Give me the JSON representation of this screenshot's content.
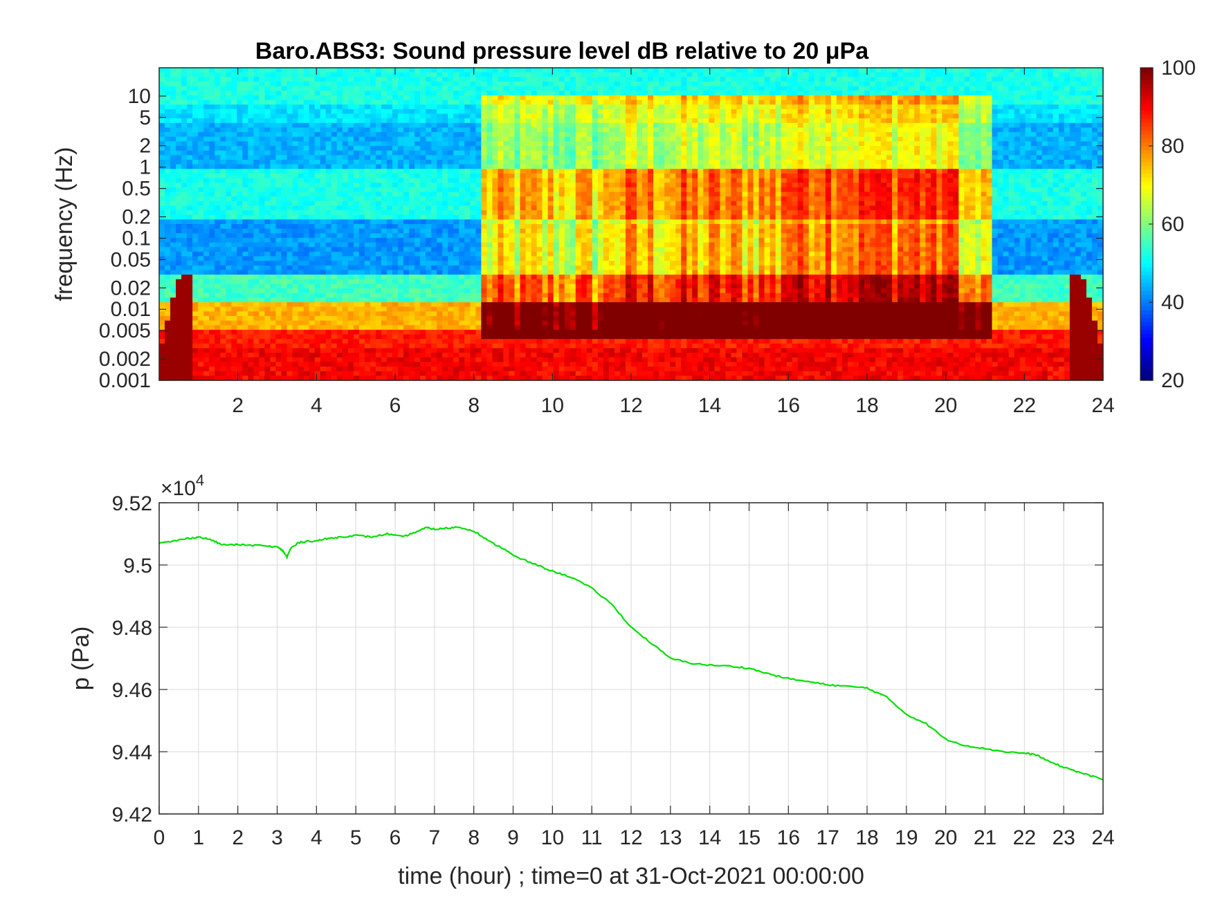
{
  "chart_data": [
    {
      "type": "heatmap",
      "title": "Baro.ABS3: Sound pressure level dB relative to 20 μPa",
      "ylabel": "frequency (Hz)",
      "xlabel": "",
      "x_ticks": [
        2,
        4,
        6,
        8,
        10,
        12,
        14,
        16,
        18,
        20,
        22,
        24
      ],
      "xlim": [
        0,
        24
      ],
      "y_scale": "log",
      "ylim": [
        0.001,
        25
      ],
      "y_ticks": [
        "0.001",
        "0.002",
        "0.005",
        "0.01",
        "0.02",
        "0.05",
        "0.1",
        "0.2",
        "0.5",
        "1",
        "2",
        "5",
        "10"
      ],
      "colorbar": {
        "ticks": [
          20,
          40,
          60,
          80,
          100
        ],
        "range": [
          20,
          100
        ],
        "colormap": "jet"
      },
      "description_values": {
        "quiet_hours": [
          0,
          8
        ],
        "active_hours": [
          8.3,
          21
        ],
        "peak_activity_hours": [
          16,
          20
        ],
        "low_freq_level_db": 90,
        "quiet_band_level_db": 40,
        "high_freq_level_db": 52
      }
    },
    {
      "type": "line",
      "title": "",
      "xlabel": "time (hour) ; time=0 at 31-Oct-2021 00:00:00",
      "ylabel": "p (Pa)",
      "y_exponent_label": "×10",
      "y_exponent_power": "4",
      "xlim": [
        0,
        24
      ],
      "ylim": [
        94200,
        95200
      ],
      "x_ticks": [
        0,
        1,
        2,
        3,
        4,
        5,
        6,
        7,
        8,
        9,
        10,
        11,
        12,
        13,
        14,
        15,
        16,
        17,
        18,
        19,
        20,
        21,
        22,
        23,
        24
      ],
      "y_ticks": [
        "9.42",
        "9.44",
        "9.46",
        "9.48",
        "9.5",
        "9.52"
      ],
      "y_tick_values": [
        94200,
        94400,
        94600,
        94800,
        95000,
        95200
      ],
      "grid": true,
      "series": [
        {
          "color": "#00e000",
          "x": [
            0,
            0.3,
            0.7,
            1.0,
            1.3,
            1.6,
            2.0,
            2.5,
            3.0,
            3.15,
            3.25,
            3.35,
            3.6,
            4.0,
            4.3,
            4.6,
            5.0,
            5.4,
            5.8,
            6.2,
            6.5,
            6.8,
            7.0,
            7.3,
            7.6,
            8.0,
            8.4,
            8.8,
            9.0,
            9.5,
            10.0,
            10.5,
            11.0,
            11.5,
            12.0,
            12.5,
            13.0,
            13.5,
            14.0,
            14.5,
            15.0,
            15.5,
            16.0,
            16.5,
            17.0,
            17.5,
            18.0,
            18.5,
            19.0,
            19.5,
            20.0,
            20.5,
            21.0,
            21.5,
            22.0,
            22.3,
            22.6,
            23.0,
            23.5,
            24.0
          ],
          "y": [
            95070,
            95075,
            95085,
            95090,
            95082,
            95065,
            95065,
            95063,
            95058,
            95045,
            95025,
            95055,
            95075,
            95078,
            95085,
            95090,
            95095,
            95090,
            95100,
            95090,
            95105,
            95120,
            95115,
            95118,
            95122,
            95110,
            95075,
            95050,
            95030,
            95005,
            94980,
            94960,
            94925,
            94875,
            94800,
            94750,
            94700,
            94685,
            94678,
            94675,
            94668,
            94650,
            94635,
            94625,
            94615,
            94610,
            94605,
            94575,
            94520,
            94490,
            94440,
            94420,
            94410,
            94400,
            94395,
            94390,
            94370,
            94350,
            94330,
            94310
          ]
        }
      ]
    }
  ]
}
